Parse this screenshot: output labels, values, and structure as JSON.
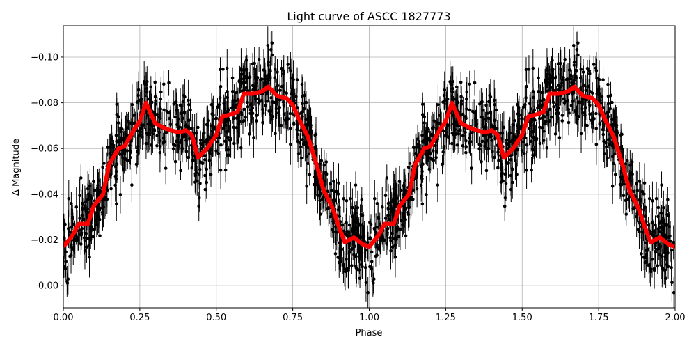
{
  "chart_data": {
    "type": "scatter",
    "title": "Light curve of ASCC 1827773",
    "xlabel": "Phase",
    "ylabel": "Δ Magnitude",
    "xlim": [
      0,
      2
    ],
    "ylim": [
      0.0097,
      -0.1137
    ],
    "y_inverted": true,
    "grid": true,
    "xticks": [
      0,
      0.25,
      0.5,
      0.75,
      1.0,
      1.25,
      1.5,
      1.75,
      2.0
    ],
    "xtick_labels": [
      "0.00",
      "0.25",
      "0.50",
      "0.75",
      "1.00",
      "1.25",
      "1.50",
      "1.75",
      "2.00"
    ],
    "yticks": [
      0.0,
      -0.02,
      -0.04,
      -0.06,
      -0.08,
      -0.1
    ],
    "ytick_labels": [
      "0.00",
      "−0.02",
      "−0.04",
      "−0.06",
      "−0.08",
      "−0.10"
    ],
    "series": [
      {
        "name": "observations",
        "kind": "errorbar-scatter",
        "color": "#000000",
        "points_per_cycle": 900,
        "scatter_std": 0.0085,
        "typical_error": 0.006,
        "repeat_period": 1.0
      },
      {
        "name": "smoothed",
        "kind": "line",
        "color": "#ff0000",
        "phase": [
          0.0,
          0.03,
          0.05,
          0.08,
          0.1,
          0.13,
          0.15,
          0.18,
          0.2,
          0.23,
          0.25,
          0.27,
          0.3,
          0.33,
          0.35,
          0.38,
          0.4,
          0.42,
          0.44,
          0.47,
          0.5,
          0.52,
          0.55,
          0.57,
          0.59,
          0.62,
          0.65,
          0.67,
          0.7,
          0.73,
          0.75,
          0.77,
          0.8,
          0.83,
          0.85,
          0.88,
          0.9,
          0.92,
          0.95,
          0.98,
          1.0
        ],
        "mag": [
          -0.017,
          -0.022,
          -0.027,
          -0.027,
          -0.035,
          -0.04,
          -0.053,
          -0.06,
          -0.061,
          -0.068,
          -0.072,
          -0.08,
          -0.071,
          -0.069,
          -0.068,
          -0.067,
          -0.068,
          -0.066,
          -0.056,
          -0.06,
          -0.066,
          -0.074,
          -0.075,
          -0.076,
          -0.084,
          -0.084,
          -0.085,
          -0.087,
          -0.083,
          -0.082,
          -0.079,
          -0.073,
          -0.065,
          -0.052,
          -0.042,
          -0.034,
          -0.026,
          -0.019,
          -0.021,
          -0.018,
          -0.017
        ]
      }
    ]
  }
}
